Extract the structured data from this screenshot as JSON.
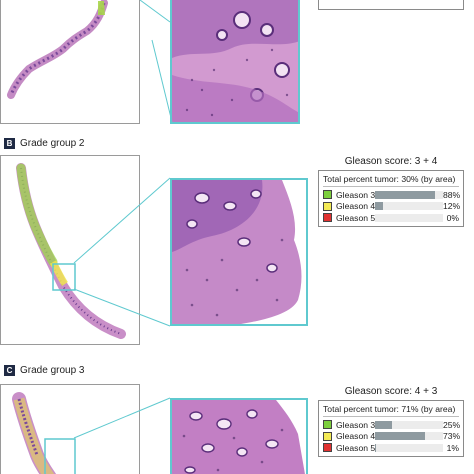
{
  "sections": [
    {
      "letter": "B",
      "label": "Grade group 2",
      "score_title": "Gleason score: 3 + 4",
      "total_tumor": "Total percent tumor: 30% (by area)",
      "rows": [
        {
          "label": "Gleason 3",
          "percent_text": "88%",
          "value": 88,
          "color": "#7ccf3d"
        },
        {
          "label": "Gleason 4",
          "percent_text": "12%",
          "value": 12,
          "color": "#f3ea55"
        },
        {
          "label": "Gleason 5",
          "percent_text": "0%",
          "value": 0,
          "color": "#e03131"
        }
      ]
    },
    {
      "letter": "C",
      "label": "Grade group 3",
      "score_title": "Gleason score: 4 + 3",
      "total_tumor": "Total percent tumor: 71% (by area)",
      "rows": [
        {
          "label": "Gleason 3",
          "percent_text": "25%",
          "value": 25,
          "color": "#7ccf3d"
        },
        {
          "label": "Gleason 4",
          "percent_text": "73%",
          "value": 73,
          "color": "#f3ea55"
        },
        {
          "label": "Gleason 5",
          "percent_text": "1%",
          "value": 1,
          "color": "#e03131"
        }
      ]
    }
  ],
  "colors": {
    "zoom_border": "#5fc9cf",
    "tissue_pink": "#c97fc0",
    "tissue_purple": "#6a3d8f",
    "gleason3_green": "#7ccf3d",
    "gleason4_yellow": "#f3ea55",
    "gleason5_red": "#e03131"
  }
}
